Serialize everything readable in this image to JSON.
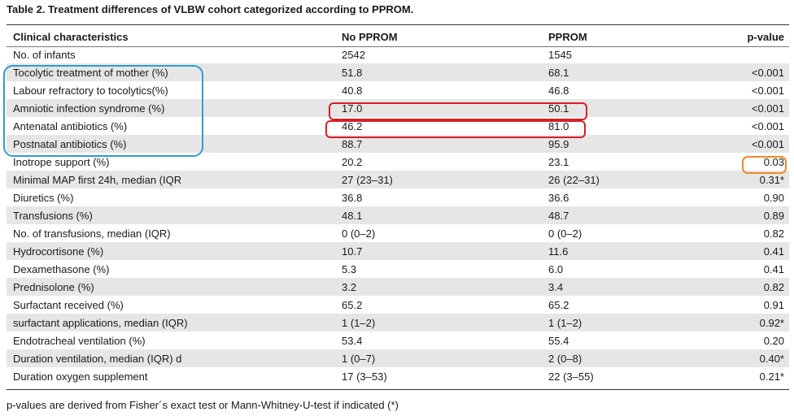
{
  "table": {
    "caption": "Table 2.  Treatment differences of VLBW cohort categorized according to PPROM.",
    "headers": [
      "Clinical characteristics",
      "No PPROM",
      "PPROM",
      "p-value"
    ],
    "rows": [
      [
        "No. of infants",
        "2542",
        "1545",
        ""
      ],
      [
        "Tocolytic treatment of mother (%)",
        "51.8",
        "68.1",
        "<0.001"
      ],
      [
        "Labour refractory to tocolytics(%)",
        "40.8",
        "46.8",
        "<0.001"
      ],
      [
        "Amniotic infection syndrome (%)",
        "17.0",
        "50.1",
        "<0.001"
      ],
      [
        "Antenatal antibiotics (%)",
        "46.2",
        "81.0",
        "<0.001"
      ],
      [
        "Postnatal antibiotics (%)",
        "88.7",
        "95.9",
        "<0.001"
      ],
      [
        "Inotrope support (%)",
        "20.2",
        "23.1",
        "0.03"
      ],
      [
        "Minimal MAP first 24h, median (IQR",
        "27 (23–31)",
        "26 (22–31)",
        "0.31*"
      ],
      [
        "Diuretics (%)",
        "36.8",
        "36.6",
        "0.90"
      ],
      [
        "Transfusions (%)",
        "48.1",
        "48.7",
        "0.89"
      ],
      [
        "No. of transfusions, median (IQR)",
        "0 (0–2)",
        "0 (0–2)",
        "0.82"
      ],
      [
        "Hydrocortisone (%)",
        "10.7",
        "11.6",
        "0.41"
      ],
      [
        "Dexamethasone (%)",
        "5.3",
        "6.0",
        "0.41"
      ],
      [
        "Prednisolone (%)",
        "3.2",
        "3.4",
        "0.82"
      ],
      [
        "Surfactant received (%)",
        "65.2",
        "65.2",
        "0.91"
      ],
      [
        "surfactant applications, median (IQR)",
        "1 (1–2)",
        "1 (1–2)",
        "0.92*"
      ],
      [
        "Endotracheal ventilation (%)",
        "53.4",
        "55.4",
        "0.20"
      ],
      [
        "Duration ventilation, median (IQR) d",
        "1 (0–7)",
        "2 (0–8)",
        "0.40*"
      ],
      [
        "Duration oxygen supplement",
        "17 (3–53)",
        "22 (3–55)",
        "0.21*"
      ]
    ],
    "footnote": "p-values are derived from Fisher´s exact test or Mann-Whitney-U-test if indicated (*)"
  },
  "annotations": {
    "blue_outline_color": "#2f9ed0",
    "red_outline_color": "#d81e26",
    "orange_outline_color": "#f08a24"
  }
}
